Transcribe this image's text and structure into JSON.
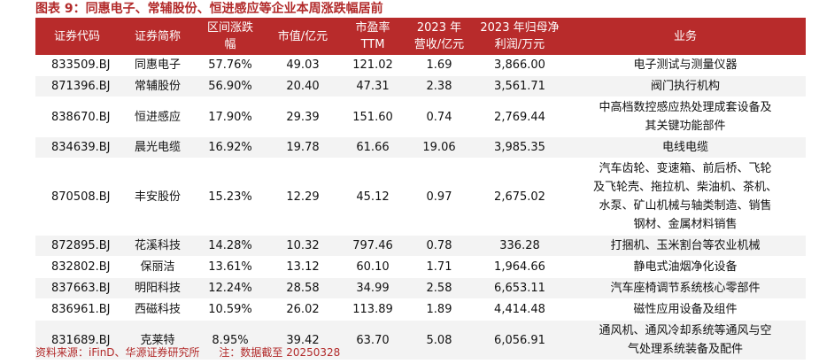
{
  "title": "图表 9：同惠电子、常辅股份、恒进感应等企业本周涨跌幅居前",
  "headers": [
    "证券代码",
    "证券简称",
    "区间涨跌幅",
    "市值/亿元",
    "市盈率TTM",
    "2023 年营收/亿元",
    "2023 年归母净利润/万元",
    "业务"
  ],
  "headers_display": [
    [
      "证券代码"
    ],
    [
      "证券简称"
    ],
    [
      "区间涨跌",
      "幅"
    ],
    [
      "市值/亿元"
    ],
    [
      "市盈率",
      "TTM"
    ],
    [
      "2023 年",
      "营收/亿元"
    ],
    [
      "2023 年归母净",
      "利润/万元"
    ],
    [
      "业务"
    ]
  ],
  "rows": [
    {
      "code": "833509.BJ",
      "name": "同惠电子",
      "chg": "57.76%",
      "mcap": "49.03",
      "pe": "121.02",
      "rev": "1.69",
      "profit": "3,866.00",
      "biz": [
        "电子测试与测量仪器"
      ]
    },
    {
      "code": "871396.BJ",
      "name": "常辅股份",
      "chg": "56.90%",
      "mcap": "20.40",
      "pe": "47.31",
      "rev": "2.38",
      "profit": "3,561.71",
      "biz": [
        "阀门执行机构"
      ]
    },
    {
      "code": "838670.BJ",
      "name": "恒进感应",
      "chg": "17.90%",
      "mcap": "29.39",
      "pe": "151.60",
      "rev": "0.74",
      "profit": "2,769.44",
      "biz": [
        "中高档数控感应热处理成套设备及",
        "其关键功能部件"
      ]
    },
    {
      "code": "834639.BJ",
      "name": "晨光电缆",
      "chg": "16.92%",
      "mcap": "19.78",
      "pe": "61.66",
      "rev": "19.06",
      "profit": "3,985.35",
      "biz": [
        "电线电缆"
      ]
    },
    {
      "code": "870508.BJ",
      "name": "丰安股份",
      "chg": "15.23%",
      "mcap": "12.29",
      "pe": "45.12",
      "rev": "0.97",
      "profit": "2,675.02",
      "biz": [
        "汽车齿轮、变速箱、前后桥、飞轮",
        "及飞轮壳、拖拉机、柴油机、茶机、",
        "水泵、矿山机械与轴类制造、销售",
        "钢材、金属材料销售"
      ]
    },
    {
      "code": "872895.BJ",
      "name": "花溪科技",
      "chg": "14.28%",
      "mcap": "10.32",
      "pe": "797.46",
      "rev": "0.78",
      "profit": "336.28",
      "biz": [
        "打捆机、玉米割台等农业机械"
      ]
    },
    {
      "code": "832802.BJ",
      "name": "保丽洁",
      "chg": "13.61%",
      "mcap": "13.12",
      "pe": "60.10",
      "rev": "1.71",
      "profit": "1,964.66",
      "biz": [
        "静电式油烟净化设备"
      ]
    },
    {
      "code": "837663.BJ",
      "name": "明阳科技",
      "chg": "12.24%",
      "mcap": "28.58",
      "pe": "34.99",
      "rev": "2.58",
      "profit": "6,653.11",
      "biz": [
        "汽车座椅调节系统核心零部件"
      ]
    },
    {
      "code": "836961.BJ",
      "name": "西磁科技",
      "chg": "10.59%",
      "mcap": "26.02",
      "pe": "113.89",
      "rev": "1.89",
      "profit": "4,414.48",
      "biz": [
        "磁性应用设备及组件"
      ]
    },
    {
      "code": "831689.BJ",
      "name": "克莱特",
      "chg": "8.95%",
      "mcap": "39.42",
      "pe": "63.70",
      "rev": "5.08",
      "profit": "6,056.91",
      "biz": [
        "通风机、通风冷却系统等通风与空",
        "气处理系统装备及配件"
      ]
    }
  ],
  "source": "资料来源：iFinD、华源证券研究所",
  "note": "注：数据截至 20250328",
  "colors": {
    "header_bg": "#b82b2b",
    "title": "#b22a2a",
    "band": "#f3f3f3"
  }
}
